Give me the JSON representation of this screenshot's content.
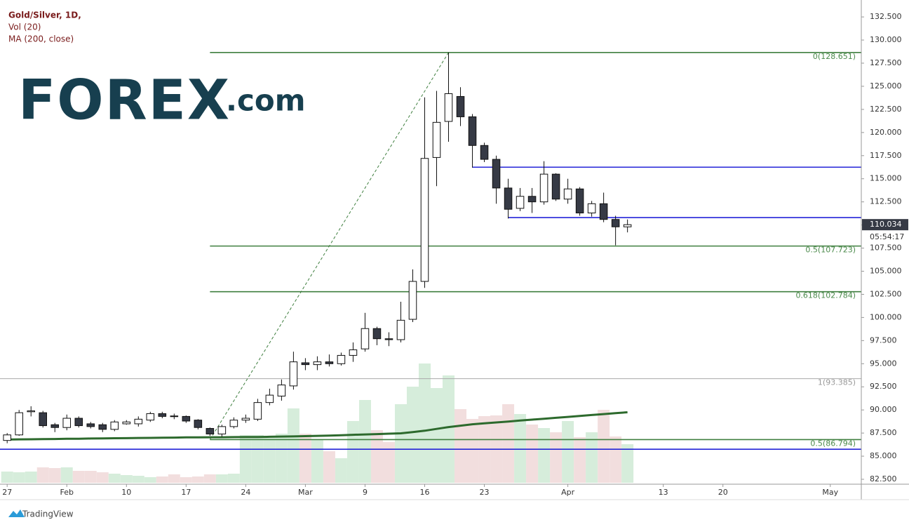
{
  "logo": "FOREX",
  "logo_suffix": ".com",
  "footer": "TradingView",
  "chart_data": {
    "type": "candlestick",
    "title": "Gold/Silver, 1D,",
    "candles": {
      "open": [
        86.7,
        87.3,
        89.8,
        89.7,
        88.4,
        88.1,
        89.1,
        88.5,
        88.4,
        87.9,
        88.5,
        88.5,
        88.9,
        89.6,
        89.35,
        89.3,
        88.9,
        88.0,
        87.4,
        88.2,
        88.9,
        89.0,
        90.8,
        91.5,
        92.6,
        95.1,
        94.9,
        95.2,
        95.0,
        95.9,
        96.6,
        98.8,
        97.7,
        97.6,
        99.8,
        103.9,
        117.3,
        121.2,
        123.9,
        121.7,
        118.6,
        117.1,
        114.0,
        111.8,
        113.1,
        112.5,
        115.5,
        112.8,
        113.9,
        111.3,
        112.3,
        110.6,
        109.8
      ],
      "high": [
        87.5,
        90.0,
        90.4,
        89.9,
        88.6,
        89.5,
        89.3,
        88.7,
        88.6,
        88.9,
        88.9,
        89.3,
        89.8,
        89.8,
        89.6,
        89.4,
        89.0,
        88.1,
        88.4,
        89.2,
        89.5,
        91.2,
        92.3,
        93.3,
        96.3,
        95.6,
        95.8,
        96.0,
        96.2,
        97.3,
        100.5,
        99.0,
        98.4,
        101.7,
        105.2,
        123.8,
        124.5,
        128.651,
        124.9,
        122.0,
        118.9,
        117.5,
        115.0,
        114.0,
        114.0,
        116.9,
        115.6,
        115.0,
        114.1,
        112.6,
        113.5,
        111.0,
        110.6
      ],
      "low": [
        86.4,
        87.2,
        89.3,
        88.1,
        87.6,
        87.8,
        88.1,
        88.0,
        87.6,
        87.7,
        88.4,
        88.2,
        88.7,
        89.1,
        89.0,
        88.6,
        87.9,
        87.2,
        87.1,
        88.0,
        88.6,
        88.8,
        90.5,
        91.0,
        92.2,
        94.3,
        94.3,
        94.7,
        94.8,
        95.2,
        96.3,
        97.0,
        96.9,
        97.3,
        99.5,
        103.2,
        114.2,
        119.0,
        120.7,
        116.2,
        116.8,
        112.3,
        110.7,
        111.5,
        111.3,
        112.2,
        112.6,
        112.3,
        111.0,
        110.9,
        110.3,
        107.8,
        109.2
      ],
      "close": [
        87.3,
        89.7,
        89.9,
        88.3,
        88.1,
        89.1,
        88.3,
        88.2,
        87.9,
        88.7,
        88.7,
        89.0,
        89.6,
        89.3,
        89.3,
        88.8,
        88.1,
        87.4,
        88.2,
        88.9,
        89.1,
        90.8,
        91.6,
        92.7,
        95.2,
        94.9,
        95.2,
        95.0,
        95.9,
        96.5,
        98.8,
        97.7,
        97.6,
        99.7,
        103.9,
        117.2,
        121.1,
        124.2,
        121.7,
        118.6,
        117.1,
        114.0,
        111.7,
        113.1,
        112.5,
        115.5,
        112.8,
        113.9,
        111.3,
        112.3,
        110.6,
        109.8,
        110.034
      ],
      "up_color": "#ffffff",
      "down_color": "#363a45"
    },
    "volume": {
      "name": "Vol (20)",
      "values": [
        16,
        15,
        16,
        22,
        21,
        22,
        17,
        17,
        15,
        13,
        11,
        10,
        8,
        9,
        12,
        8,
        9,
        12,
        12,
        13,
        68,
        68,
        65,
        70,
        106,
        70,
        62,
        45,
        35,
        88,
        118,
        75,
        58,
        112,
        137,
        170,
        135,
        153,
        105,
        91,
        95,
        96,
        112,
        98,
        83,
        78,
        72,
        88,
        65,
        72,
        104,
        66,
        55
      ],
      "ylim": [
        0,
        400
      ],
      "up_color": "#d6eddb",
      "down_color": "#f2dede"
    },
    "ma": {
      "name": "MA (200, close)",
      "color": "#2d6a2d",
      "values": [
        86.8,
        86.82,
        86.83,
        86.85,
        86.86,
        86.88,
        86.89,
        86.91,
        86.92,
        86.94,
        86.95,
        86.97,
        86.98,
        87.0,
        87.01,
        87.03,
        87.04,
        87.05,
        87.05,
        87.06,
        87.07,
        87.08,
        87.1,
        87.12,
        87.14,
        87.17,
        87.2,
        87.23,
        87.27,
        87.31,
        87.35,
        87.39,
        87.43,
        87.47,
        87.6,
        87.75,
        87.95,
        88.15,
        88.3,
        88.45,
        88.55,
        88.65,
        88.75,
        88.85,
        88.95,
        89.05,
        89.15,
        89.25,
        89.35,
        89.45,
        89.55,
        89.65,
        89.75
      ]
    },
    "fib": [
      {
        "value": 128.651,
        "label": "0(128.651)",
        "color": "#3f7f3f",
        "from": 17
      },
      {
        "value": 107.723,
        "label": "0.5(107.723)",
        "color": "#3f7f3f",
        "from": 17
      },
      {
        "value": 102.784,
        "label": "0.618(102.784)",
        "color": "#3f7f3f",
        "from": 17
      },
      {
        "value": 93.385,
        "label": "1(93.385)",
        "color": "#aaaaaa"
      },
      {
        "value": 86.794,
        "label": "0.5(86.794)",
        "color": "#3f7f3f",
        "from": 17
      }
    ],
    "lines": [
      {
        "value": 116.25,
        "from": 39,
        "color": "#2424d8"
      },
      {
        "value": 110.8,
        "from": 42,
        "color": "#2424d8"
      },
      {
        "value": 85.75,
        "color": "#2424d8"
      }
    ],
    "trend": {
      "x": [
        17,
        37
      ],
      "y": [
        86.794,
        128.651
      ],
      "color": "#3f7f3f"
    },
    "last": {
      "value": 110.034,
      "label": "110.034"
    },
    "countdown": "05:54:17",
    "xlim": [
      -0.6,
      71.6
    ],
    "xticks": [
      {
        "value": 0,
        "label": "27"
      },
      {
        "value": 5,
        "label": "Feb"
      },
      {
        "value": 10,
        "label": "10"
      },
      {
        "value": 15,
        "label": "17"
      },
      {
        "value": 20,
        "label": "24"
      },
      {
        "value": 25,
        "label": "Mar"
      },
      {
        "value": 30,
        "label": "9"
      },
      {
        "value": 35,
        "label": "16"
      },
      {
        "value": 40,
        "label": "23"
      },
      {
        "value": 47,
        "label": "Apr"
      },
      {
        "value": 55,
        "label": "13"
      },
      {
        "value": 60,
        "label": "20"
      },
      {
        "value": 69,
        "label": "May"
      }
    ],
    "ylim": [
      81.97,
      134.33
    ],
    "yticks": [
      {
        "value": 82.5,
        "label": "82.500"
      },
      {
        "value": 85,
        "label": "85.000"
      },
      {
        "value": 87.5,
        "label": "87.500"
      },
      {
        "value": 90,
        "label": "90.000"
      },
      {
        "value": 92.5,
        "label": "92.500"
      },
      {
        "value": 95,
        "label": "95.000"
      },
      {
        "value": 97.5,
        "label": "97.500"
      },
      {
        "value": 100,
        "label": "100.000"
      },
      {
        "value": 102.5,
        "label": "102.500"
      },
      {
        "value": 105,
        "label": "105.000"
      },
      {
        "value": 107.5,
        "label": "107.500"
      },
      {
        "value": 110,
        "label": "110.000"
      },
      {
        "value": 112.5,
        "label": "112.500"
      },
      {
        "value": 115,
        "label": "115.000"
      },
      {
        "value": 117.5,
        "label": "117.500"
      },
      {
        "value": 120,
        "label": "120.000"
      },
      {
        "value": 122.5,
        "label": "122.500"
      },
      {
        "value": 125,
        "label": "125.000"
      },
      {
        "value": 127.5,
        "label": "127.500"
      },
      {
        "value": 130,
        "label": "130.000"
      },
      {
        "value": 132.5,
        "label": "132.500"
      }
    ]
  }
}
